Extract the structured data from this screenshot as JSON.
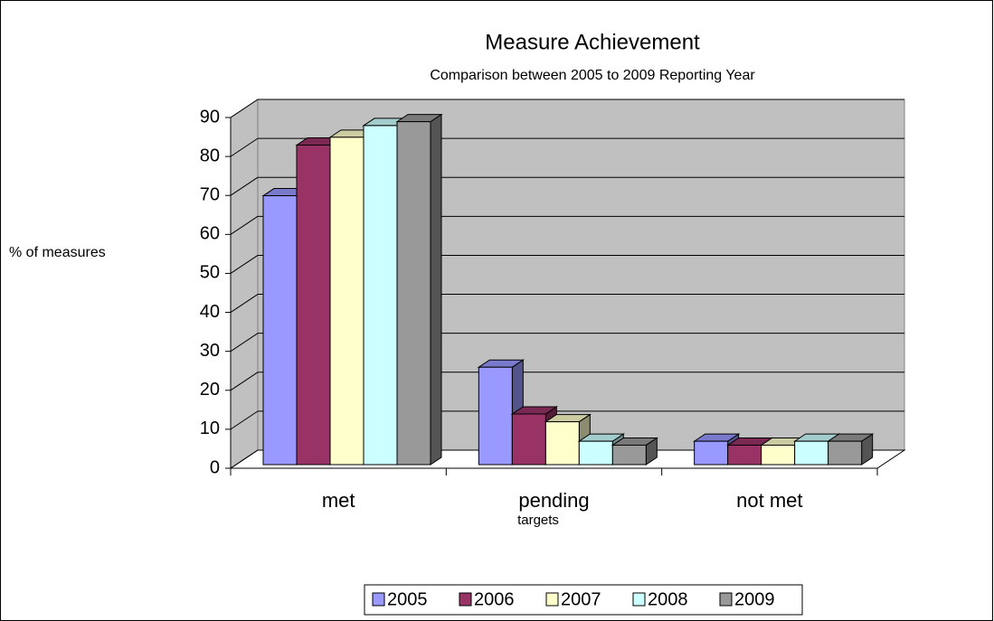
{
  "chart_data": {
    "type": "bar3d",
    "title": "Measure Achievement",
    "subtitle": "Comparison between 2005 to 2009 Reporting Year",
    "y_label": "% of measures",
    "annotation": "targets",
    "categories": [
      "met",
      "pending",
      "not met"
    ],
    "series": [
      {
        "name": "2005",
        "color": "#9999ff",
        "values": [
          69,
          25,
          6
        ]
      },
      {
        "name": "2006",
        "color": "#993366",
        "values": [
          82,
          13,
          5
        ]
      },
      {
        "name": "2007",
        "color": "#ffffcc",
        "values": [
          84,
          11,
          5
        ]
      },
      {
        "name": "2008",
        "color": "#ccffff",
        "values": [
          87,
          6,
          6
        ]
      },
      {
        "name": "2009",
        "color": "#999999",
        "values": [
          88,
          5,
          6
        ]
      }
    ],
    "ylim": [
      0,
      90
    ],
    "yticks": [
      0,
      10,
      20,
      30,
      40,
      50,
      60,
      70,
      80,
      90
    ],
    "grid": true,
    "legend": "bottom"
  }
}
